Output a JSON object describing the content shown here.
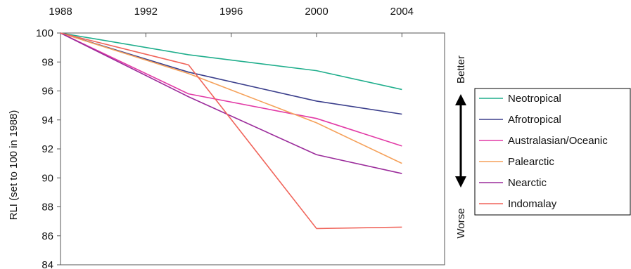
{
  "chart_data": {
    "type": "line",
    "title": "",
    "xlabel": "",
    "ylabel": "RLI (set to 100 in 1988)",
    "x_ticks": [
      "1988",
      "1992",
      "1996",
      "2000",
      "2004"
    ],
    "x_range": [
      1988,
      2006
    ],
    "y_ticks": [
      "84",
      "86",
      "88",
      "90",
      "92",
      "94",
      "96",
      "98",
      "100"
    ],
    "ylim": [
      84,
      100
    ],
    "x_axis_position": "top",
    "grid": false,
    "legend_position": "right",
    "direction_labels": {
      "top": "Better",
      "bottom": "Worse"
    },
    "series": [
      {
        "name": "Neotropical",
        "color": "#1fae8c",
        "x": [
          1988,
          1994,
          2000,
          2004
        ],
        "values": [
          100,
          98.5,
          97.4,
          96.1
        ]
      },
      {
        "name": "Afrotropical",
        "color": "#3b3f8c",
        "x": [
          1988,
          1994,
          2000,
          2004
        ],
        "values": [
          100,
          97.3,
          95.3,
          94.4
        ]
      },
      {
        "name": "Australasian/Oceanic",
        "color": "#e23aa6",
        "x": [
          1988,
          1994,
          2000,
          2004
        ],
        "values": [
          100,
          95.8,
          94.1,
          92.2
        ]
      },
      {
        "name": "Palearctic",
        "color": "#f5a15a",
        "x": [
          1988,
          1994,
          2000,
          2004
        ],
        "values": [
          100,
          97.2,
          93.8,
          91.0
        ]
      },
      {
        "name": "Nearctic",
        "color": "#9b2c9b",
        "x": [
          1988,
          1994,
          2000,
          2004
        ],
        "values": [
          100,
          95.6,
          91.6,
          90.3
        ]
      },
      {
        "name": "Indomalay",
        "color": "#f0645a",
        "x": [
          1988,
          1994,
          2000,
          2004
        ],
        "values": [
          100,
          97.8,
          86.5,
          86.6
        ]
      }
    ]
  }
}
